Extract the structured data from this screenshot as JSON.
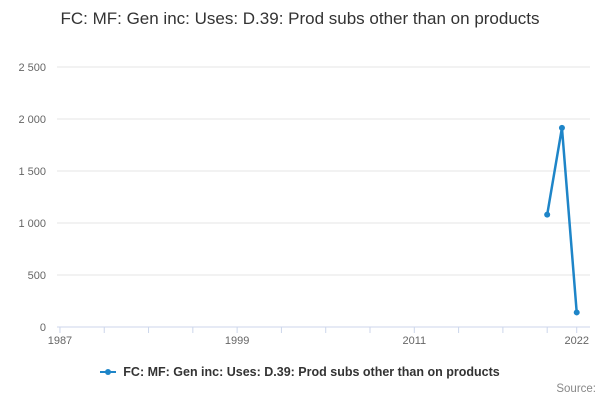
{
  "title": "FC: MF: Gen inc: Uses: D.39: Prod subs other than on products",
  "legend": {
    "label": "FC: MF: Gen inc: Uses: D.39: Prod subs other than on products"
  },
  "credits": "Source:",
  "colors": {
    "series": "#1e85c8",
    "grid": "#e6e6e6",
    "axis": "#ccd6eb",
    "tick_label": "#666666",
    "title": "#333333",
    "credits": "#888888"
  },
  "chart_data": {
    "type": "line",
    "title": "FC: MF: Gen inc: Uses: D.39: Prod subs other than on products",
    "x": [
      2020,
      2021,
      2022
    ],
    "series": [
      {
        "name": "FC: MF: Gen inc: Uses: D.39: Prod subs other than on products",
        "values": [
          1080,
          1915,
          140
        ]
      }
    ],
    "xlabel": "",
    "ylabel": "",
    "xlim": [
      1986.8,
      2022.9
    ],
    "ylim": [
      0,
      2500
    ],
    "grid": "horizontal",
    "legend_position": "bottom-center",
    "y_ticks": [
      {
        "value": 0,
        "label": "0"
      },
      {
        "value": 500,
        "label": "500"
      },
      {
        "value": 1000,
        "label": "1 000"
      },
      {
        "value": 1500,
        "label": "1 500"
      },
      {
        "value": 2000,
        "label": "2 000"
      },
      {
        "value": 2500,
        "label": "2 500"
      }
    ],
    "x_ticks_minor": [
      1987,
      1990,
      1993,
      1996,
      1999,
      2002,
      2005,
      2008,
      2011,
      2014,
      2017,
      2020,
      2022
    ],
    "x_ticks_labeled": [
      {
        "value": 1987,
        "label": "1987"
      },
      {
        "value": 1999,
        "label": "1999"
      },
      {
        "value": 2011,
        "label": "2011"
      },
      {
        "value": 2022,
        "label": "2022"
      }
    ]
  }
}
